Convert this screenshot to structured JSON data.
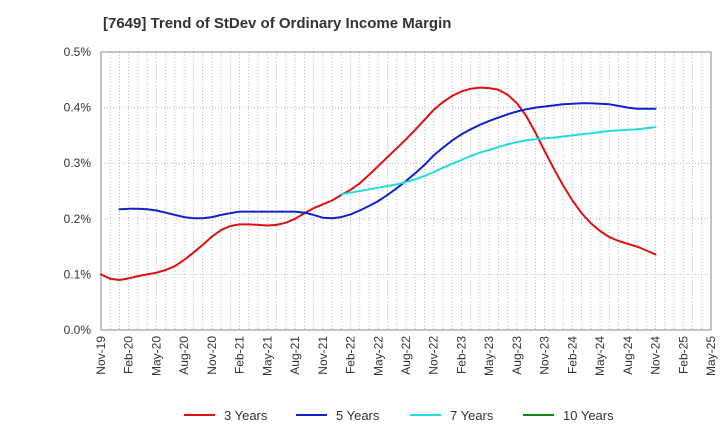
{
  "chart_data": {
    "type": "line",
    "title": "[7649]  Trend of StDev of Ordinary Income Margin",
    "xlabel": "",
    "ylabel": "",
    "ylim": [
      0,
      0.5
    ],
    "y_ticks": [
      0,
      0.1,
      0.2,
      0.3,
      0.4,
      0.5
    ],
    "y_tick_labels": [
      "0.0%",
      "0.1%",
      "0.2%",
      "0.3%",
      "0.4%",
      "0.5%"
    ],
    "x_range": [
      "2019-11",
      "2025-05"
    ],
    "x_tick_labels": [
      "Nov-19",
      "Feb-20",
      "May-20",
      "Aug-20",
      "Nov-20",
      "Feb-21",
      "May-21",
      "Aug-21",
      "Nov-21",
      "Feb-22",
      "May-22",
      "Aug-22",
      "Nov-22",
      "Feb-23",
      "May-23",
      "Aug-23",
      "Nov-23",
      "Feb-24",
      "May-24",
      "Aug-24",
      "Nov-24",
      "Feb-25",
      "May-25"
    ],
    "grid": "dotted, both axes",
    "legend_position": "bottom",
    "series": [
      {
        "name": "3 Years",
        "color": "#dd1111",
        "points": [
          [
            "2019-11",
            0.1
          ],
          [
            "2019-12",
            0.092
          ],
          [
            "2020-01",
            0.09
          ],
          [
            "2020-02",
            0.093
          ],
          [
            "2020-03",
            0.097
          ],
          [
            "2020-04",
            0.1
          ],
          [
            "2020-05",
            0.103
          ],
          [
            "2020-06",
            0.108
          ],
          [
            "2020-07",
            0.115
          ],
          [
            "2020-08",
            0.126
          ],
          [
            "2020-09",
            0.139
          ],
          [
            "2020-10",
            0.153
          ],
          [
            "2020-11",
            0.168
          ],
          [
            "2020-12",
            0.18
          ],
          [
            "2021-01",
            0.187
          ],
          [
            "2021-02",
            0.19
          ],
          [
            "2021-03",
            0.19
          ],
          [
            "2021-04",
            0.189
          ],
          [
            "2021-05",
            0.188
          ],
          [
            "2021-06",
            0.189
          ],
          [
            "2021-07",
            0.193
          ],
          [
            "2021-08",
            0.2
          ],
          [
            "2021-09",
            0.21
          ],
          [
            "2021-10",
            0.219
          ],
          [
            "2021-11",
            0.226
          ],
          [
            "2021-12",
            0.233
          ],
          [
            "2022-01",
            0.243
          ],
          [
            "2022-02",
            0.252
          ],
          [
            "2022-03",
            0.264
          ],
          [
            "2022-04",
            0.279
          ],
          [
            "2022-05",
            0.295
          ],
          [
            "2022-06",
            0.311
          ],
          [
            "2022-07",
            0.327
          ],
          [
            "2022-08",
            0.343
          ],
          [
            "2022-09",
            0.36
          ],
          [
            "2022-10",
            0.378
          ],
          [
            "2022-11",
            0.396
          ],
          [
            "2022-12",
            0.41
          ],
          [
            "2023-01",
            0.421
          ],
          [
            "2023-02",
            0.429
          ],
          [
            "2023-03",
            0.434
          ],
          [
            "2023-04",
            0.436
          ],
          [
            "2023-05",
            0.435
          ],
          [
            "2023-06",
            0.432
          ],
          [
            "2023-07",
            0.423
          ],
          [
            "2023-08",
            0.408
          ],
          [
            "2023-09",
            0.385
          ],
          [
            "2023-10",
            0.355
          ],
          [
            "2023-11",
            0.322
          ],
          [
            "2023-12",
            0.29
          ],
          [
            "2024-01",
            0.26
          ],
          [
            "2024-02",
            0.233
          ],
          [
            "2024-03",
            0.21
          ],
          [
            "2024-04",
            0.192
          ],
          [
            "2024-05",
            0.178
          ],
          [
            "2024-06",
            0.167
          ],
          [
            "2024-07",
            0.16
          ],
          [
            "2024-08",
            0.155
          ],
          [
            "2024-09",
            0.15
          ],
          [
            "2024-10",
            0.143
          ],
          [
            "2024-11",
            0.136
          ]
        ]
      },
      {
        "name": "5 Years",
        "color": "#1122cc",
        "points": [
          [
            "2020-01",
            0.217
          ],
          [
            "2020-02",
            0.218
          ],
          [
            "2020-03",
            0.218
          ],
          [
            "2020-04",
            0.217
          ],
          [
            "2020-05",
            0.215
          ],
          [
            "2020-06",
            0.211
          ],
          [
            "2020-07",
            0.207
          ],
          [
            "2020-08",
            0.203
          ],
          [
            "2020-09",
            0.201
          ],
          [
            "2020-10",
            0.201
          ],
          [
            "2020-11",
            0.203
          ],
          [
            "2020-12",
            0.207
          ],
          [
            "2021-01",
            0.21
          ],
          [
            "2021-02",
            0.213
          ],
          [
            "2021-03",
            0.213
          ],
          [
            "2021-04",
            0.213
          ],
          [
            "2021-05",
            0.213
          ],
          [
            "2021-06",
            0.213
          ],
          [
            "2021-07",
            0.213
          ],
          [
            "2021-08",
            0.213
          ],
          [
            "2021-09",
            0.211
          ],
          [
            "2021-10",
            0.207
          ],
          [
            "2021-11",
            0.202
          ],
          [
            "2021-12",
            0.201
          ],
          [
            "2022-01",
            0.203
          ],
          [
            "2022-02",
            0.208
          ],
          [
            "2022-03",
            0.215
          ],
          [
            "2022-04",
            0.223
          ],
          [
            "2022-05",
            0.232
          ],
          [
            "2022-06",
            0.243
          ],
          [
            "2022-07",
            0.255
          ],
          [
            "2022-08",
            0.268
          ],
          [
            "2022-09",
            0.282
          ],
          [
            "2022-10",
            0.297
          ],
          [
            "2022-11",
            0.314
          ],
          [
            "2022-12",
            0.328
          ],
          [
            "2023-01",
            0.341
          ],
          [
            "2023-02",
            0.352
          ],
          [
            "2023-03",
            0.361
          ],
          [
            "2023-04",
            0.369
          ],
          [
            "2023-05",
            0.376
          ],
          [
            "2023-06",
            0.382
          ],
          [
            "2023-07",
            0.388
          ],
          [
            "2023-08",
            0.393
          ],
          [
            "2023-09",
            0.397
          ],
          [
            "2023-10",
            0.4
          ],
          [
            "2023-11",
            0.402
          ],
          [
            "2023-12",
            0.404
          ],
          [
            "2024-01",
            0.406
          ],
          [
            "2024-02",
            0.407
          ],
          [
            "2024-03",
            0.408
          ],
          [
            "2024-04",
            0.408
          ],
          [
            "2024-05",
            0.407
          ],
          [
            "2024-06",
            0.406
          ],
          [
            "2024-07",
            0.403
          ],
          [
            "2024-08",
            0.4
          ],
          [
            "2024-09",
            0.398
          ],
          [
            "2024-10",
            0.398
          ],
          [
            "2024-11",
            0.398
          ]
        ]
      },
      {
        "name": "7 Years",
        "color": "#22dddd",
        "points": [
          [
            "2022-01",
            0.244
          ],
          [
            "2022-02",
            0.247
          ],
          [
            "2022-03",
            0.25
          ],
          [
            "2022-04",
            0.253
          ],
          [
            "2022-05",
            0.256
          ],
          [
            "2022-06",
            0.259
          ],
          [
            "2022-07",
            0.262
          ],
          [
            "2022-08",
            0.266
          ],
          [
            "2022-09",
            0.271
          ],
          [
            "2022-10",
            0.277
          ],
          [
            "2022-11",
            0.284
          ],
          [
            "2022-12",
            0.292
          ],
          [
            "2023-01",
            0.299
          ],
          [
            "2023-02",
            0.306
          ],
          [
            "2023-03",
            0.313
          ],
          [
            "2023-04",
            0.319
          ],
          [
            "2023-05",
            0.324
          ],
          [
            "2023-06",
            0.329
          ],
          [
            "2023-07",
            0.334
          ],
          [
            "2023-08",
            0.338
          ],
          [
            "2023-09",
            0.341
          ],
          [
            "2023-10",
            0.343
          ],
          [
            "2023-11",
            0.345
          ],
          [
            "2023-12",
            0.346
          ],
          [
            "2024-01",
            0.348
          ],
          [
            "2024-02",
            0.35
          ],
          [
            "2024-03",
            0.352
          ],
          [
            "2024-04",
            0.354
          ],
          [
            "2024-05",
            0.356
          ],
          [
            "2024-06",
            0.358
          ],
          [
            "2024-07",
            0.359
          ],
          [
            "2024-08",
            0.36
          ],
          [
            "2024-09",
            0.361
          ],
          [
            "2024-10",
            0.363
          ],
          [
            "2024-11",
            0.365
          ]
        ]
      },
      {
        "name": "10 Years",
        "color": "#118811",
        "points": []
      }
    ]
  }
}
